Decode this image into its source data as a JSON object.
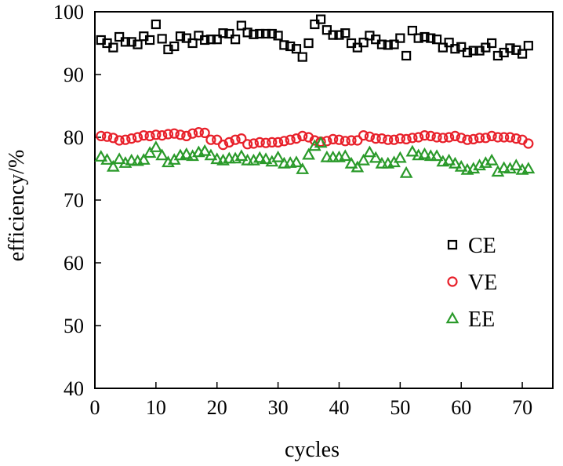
{
  "chart_data": {
    "type": "scatter",
    "title": "",
    "xlabel": "cycles",
    "ylabel": "efficiency/%",
    "xlim": [
      0,
      75
    ],
    "ylim": [
      40,
      100
    ],
    "xticks": [
      "0",
      "10",
      "20",
      "30",
      "40",
      "50",
      "60",
      "70"
    ],
    "yticks": [
      "40",
      "50",
      "60",
      "70",
      "80",
      "90",
      "100"
    ],
    "xtick_values": [
      0,
      10,
      20,
      30,
      40,
      50,
      60,
      70
    ],
    "ytick_values": [
      40,
      50,
      60,
      70,
      80,
      90,
      100
    ],
    "grid": false,
    "legend_position": "right-middle",
    "series": [
      {
        "name": "CE",
        "marker": "square",
        "color": "#000000",
        "x": [
          1,
          2,
          3,
          4,
          5,
          6,
          7,
          8,
          9,
          10,
          11,
          12,
          13,
          14,
          15,
          16,
          17,
          18,
          19,
          20,
          21,
          22,
          23,
          24,
          25,
          26,
          27,
          28,
          29,
          30,
          31,
          32,
          33,
          34,
          35,
          36,
          37,
          38,
          39,
          40,
          41,
          42,
          43,
          44,
          45,
          46,
          47,
          48,
          49,
          50,
          51,
          52,
          53,
          54,
          55,
          56,
          57,
          58,
          59,
          60,
          61,
          62,
          63,
          64,
          65,
          66,
          67,
          68,
          69,
          70,
          71
        ],
        "y": [
          95.5,
          95,
          94.3,
          96,
          95.2,
          95.2,
          94.8,
          96.1,
          95.5,
          98,
          95.7,
          94,
          94.5,
          96.1,
          95.8,
          95,
          96.2,
          95.5,
          95.6,
          95.6,
          96.6,
          96.5,
          95.6,
          97.8,
          96.7,
          96.4,
          96.5,
          96.5,
          96.5,
          96.2,
          94.7,
          94.5,
          94.1,
          92.8,
          95,
          98,
          98.8,
          97.1,
          96.3,
          96.3,
          96.6,
          95,
          94.3,
          95.1,
          96.2,
          95.6,
          94.8,
          94.7,
          94.8,
          95.8,
          93,
          97,
          95.8,
          96,
          95.8,
          95.6,
          94.3,
          95.1,
          94.1,
          94.4,
          93.5,
          93.8,
          93.8,
          94.3,
          95,
          93,
          93.5,
          94.2,
          93.9,
          93.3,
          94.6
        ]
      },
      {
        "name": "VE",
        "marker": "circle",
        "color": "#e8202a",
        "x": [
          1,
          2,
          3,
          4,
          5,
          6,
          7,
          8,
          9,
          10,
          11,
          12,
          13,
          14,
          15,
          16,
          17,
          18,
          19,
          20,
          21,
          22,
          23,
          24,
          25,
          26,
          27,
          28,
          29,
          30,
          31,
          32,
          33,
          34,
          35,
          36,
          37,
          38,
          39,
          40,
          41,
          42,
          43,
          44,
          45,
          46,
          47,
          48,
          49,
          50,
          51,
          52,
          53,
          54,
          55,
          56,
          57,
          58,
          59,
          60,
          61,
          62,
          63,
          64,
          65,
          66,
          67,
          68,
          69,
          70,
          71
        ],
        "y": [
          80.2,
          80.1,
          79.9,
          79.5,
          79.6,
          79.8,
          80,
          80.3,
          80.2,
          80.4,
          80.3,
          80.5,
          80.6,
          80.4,
          80.2,
          80.6,
          80.8,
          80.7,
          79.6,
          79.6,
          78.8,
          79.2,
          79.6,
          79.8,
          78.9,
          79,
          79.2,
          79.1,
          79.2,
          79.2,
          79.4,
          79.6,
          79.8,
          80.2,
          80,
          79.5,
          79.3,
          79.4,
          79.7,
          79.6,
          79.4,
          79.5,
          79.5,
          80.3,
          80.1,
          79.8,
          79.8,
          79.6,
          79.6,
          79.8,
          79.7,
          79.9,
          80,
          80.3,
          80.2,
          80,
          79.9,
          80,
          80.2,
          79.9,
          79.6,
          79.7,
          79.9,
          79.9,
          80.2,
          80,
          80,
          80,
          79.8,
          79.6,
          79
        ]
      },
      {
        "name": "EE",
        "marker": "triangle",
        "color": "#2a9a2a",
        "x": [
          1,
          2,
          3,
          4,
          5,
          6,
          7,
          8,
          9,
          10,
          11,
          12,
          13,
          14,
          15,
          16,
          17,
          18,
          19,
          20,
          21,
          22,
          23,
          24,
          25,
          26,
          27,
          28,
          29,
          30,
          31,
          32,
          33,
          34,
          35,
          36,
          37,
          38,
          39,
          40,
          41,
          42,
          43,
          44,
          45,
          46,
          47,
          48,
          49,
          50,
          51,
          52,
          53,
          54,
          55,
          56,
          57,
          58,
          59,
          60,
          61,
          62,
          63,
          64,
          65,
          66,
          67,
          68,
          69,
          70,
          71
        ],
        "y": [
          76.9,
          76.4,
          75.3,
          76.5,
          75.9,
          76.3,
          76.2,
          76.4,
          77.5,
          78.4,
          77.1,
          76,
          76.4,
          77.1,
          77.3,
          77,
          77.6,
          77.8,
          77.1,
          76.5,
          76.3,
          76.6,
          76.6,
          77,
          76.3,
          76.3,
          76.7,
          76.5,
          76.1,
          76.8,
          75.8,
          75.9,
          76,
          74.9,
          77.2,
          78.6,
          79.1,
          76.8,
          76.8,
          76.8,
          77,
          75.8,
          75.2,
          76.3,
          77.6,
          76.7,
          75.8,
          75.8,
          76,
          76.7,
          74.3,
          77.7,
          77.1,
          77.3,
          77,
          77,
          76.1,
          76.3,
          75.8,
          75.3,
          74.8,
          75,
          75.5,
          75.9,
          76.3,
          74.5,
          75.1,
          75,
          75.5,
          74.8,
          75
        ]
      }
    ]
  }
}
